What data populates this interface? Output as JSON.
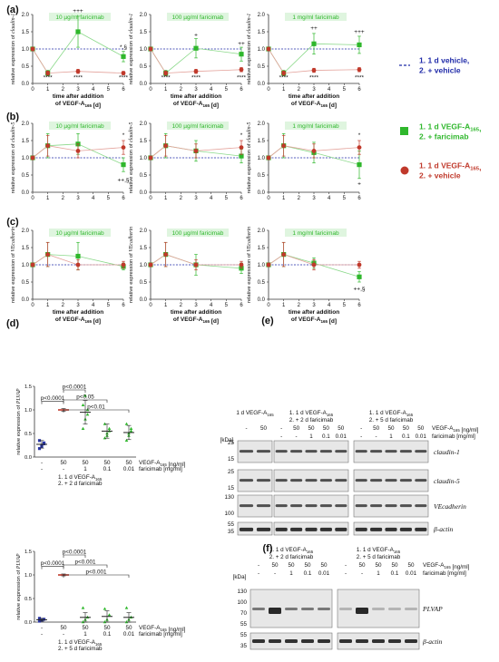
{
  "panels": {
    "a": "(a)",
    "b": "(b)",
    "c": "(c)",
    "d": "(d)",
    "e": "(e)",
    "f": "(f)"
  },
  "legend": [
    {
      "lines": [
        "1. 1 d vehicle,",
        "2. + vehicle"
      ],
      "color": "#1f2aa8",
      "marker": "dash"
    },
    {
      "lines": [
        "1. 1 d VEGF-A165,",
        "2. + faricimab"
      ],
      "color": "#2fb72c",
      "marker": "square"
    },
    {
      "lines": [
        "1. 1 d VEGF-A165,",
        "2. + vehicle"
      ],
      "color": "#c0392b",
      "marker": "circle"
    }
  ],
  "chart_data": [
    {
      "type": "line",
      "panel": "a",
      "title": "10 µg/ml faricimab",
      "ylabel": "relative expression of claudin-1",
      "xlabel": "time after addition of VEGF-A165 [d]",
      "x": [
        0,
        1,
        3,
        6
      ],
      "xticks": [
        0,
        1,
        2,
        3,
        4,
        5,
        6
      ],
      "ylim": [
        0,
        2.0
      ],
      "yticks": [
        "0.0",
        "0.5",
        "1.0",
        "1.5",
        "2.0"
      ],
      "series": [
        {
          "name": "VEGF-A165 + faricimab",
          "color": "#2fb72c",
          "values": [
            1.0,
            0.3,
            1.5,
            0.78
          ],
          "err": [
            0.05,
            0.08,
            0.45,
            0.15
          ]
        },
        {
          "name": "VEGF-A165 + vehicle",
          "color": "#c0392b",
          "values": [
            1.0,
            0.3,
            0.35,
            0.3
          ],
          "err": [
            0.05,
            0.06,
            0.06,
            0.05
          ]
        }
      ],
      "annotations": [
        {
          "x": 3,
          "y": 2.05,
          "text": "+++"
        },
        {
          "x": 6,
          "y": 1.0,
          "text": "*,§"
        },
        {
          "x": 1,
          "y": 0.12,
          "text": "****"
        },
        {
          "x": 3,
          "y": 0.12,
          "text": "****"
        },
        {
          "x": 6,
          "y": 0.12,
          "text": "****"
        }
      ]
    },
    {
      "type": "line",
      "panel": "a",
      "title": "100 µg/ml faricimab",
      "ylabel": "relative expression of claudin-1",
      "xlabel": "time after addition of VEGF-A165 [d]",
      "x": [
        0,
        1,
        3,
        6
      ],
      "xticks": [
        0,
        1,
        2,
        3,
        4,
        5,
        6
      ],
      "ylim": [
        0,
        2.0
      ],
      "yticks": [
        "0.0",
        "0.5",
        "1.0",
        "1.5",
        "2.0"
      ],
      "series": [
        {
          "name": "VEGF-A165 + faricimab",
          "color": "#2fb72c",
          "values": [
            1.0,
            0.3,
            1.02,
            0.85
          ],
          "err": [
            0.05,
            0.08,
            0.28,
            0.2
          ]
        },
        {
          "name": "VEGF-A165 + vehicle",
          "color": "#c0392b",
          "values": [
            1.0,
            0.3,
            0.35,
            0.4
          ],
          "err": [
            0.05,
            0.06,
            0.06,
            0.06
          ]
        }
      ],
      "annotations": [
        {
          "x": 3,
          "y": 1.35,
          "text": "+"
        },
        {
          "x": 6,
          "y": 1.1,
          "text": "++"
        },
        {
          "x": 1,
          "y": 0.12,
          "text": "****"
        },
        {
          "x": 3,
          "y": 0.12,
          "text": "****"
        },
        {
          "x": 6,
          "y": 0.12,
          "text": "****"
        }
      ]
    },
    {
      "type": "line",
      "panel": "a",
      "title": "1 mg/ml faricimab",
      "ylabel": "relative expression of claudin-1",
      "xlabel": "time after addition of VEGF-A165 [d]",
      "x": [
        0,
        1,
        3,
        6
      ],
      "xticks": [
        0,
        1,
        2,
        3,
        4,
        5,
        6
      ],
      "ylim": [
        0,
        2.0
      ],
      "yticks": [
        "0.0",
        "0.5",
        "1.0",
        "1.5",
        "2.0"
      ],
      "series": [
        {
          "name": "VEGF-A165 + faricimab",
          "color": "#2fb72c",
          "values": [
            1.0,
            0.3,
            1.15,
            1.12
          ],
          "err": [
            0.05,
            0.08,
            0.3,
            0.25
          ]
        },
        {
          "name": "VEGF-A165 + vehicle",
          "color": "#c0392b",
          "values": [
            1.0,
            0.3,
            0.38,
            0.4
          ],
          "err": [
            0.05,
            0.06,
            0.06,
            0.06
          ]
        }
      ],
      "annotations": [
        {
          "x": 3,
          "y": 1.55,
          "text": "++"
        },
        {
          "x": 6,
          "y": 1.45,
          "text": "+++"
        },
        {
          "x": 1,
          "y": 0.12,
          "text": "****"
        },
        {
          "x": 3,
          "y": 0.12,
          "text": "****"
        },
        {
          "x": 6,
          "y": 0.12,
          "text": "****"
        }
      ]
    },
    {
      "type": "line",
      "panel": "b",
      "title": "10 µg/ml faricimab",
      "ylabel": "relative expression of claudin-5",
      "xlabel": "",
      "x": [
        0,
        1,
        3,
        6
      ],
      "xticks": [
        0,
        1,
        2,
        3,
        4,
        5,
        6
      ],
      "ylim": [
        0,
        2.0
      ],
      "yticks": [
        "0.0",
        "0.5",
        "1.0",
        "1.5",
        "2.0"
      ],
      "series": [
        {
          "name": "VEGF-A165 + faricimab",
          "color": "#2fb72c",
          "values": [
            1.0,
            1.35,
            1.4,
            0.8
          ],
          "err": [
            0.05,
            0.35,
            0.3,
            0.2
          ]
        },
        {
          "name": "VEGF-A165 + vehicle",
          "color": "#c0392b",
          "values": [
            1.0,
            1.35,
            1.2,
            1.3
          ],
          "err": [
            0.05,
            0.3,
            0.2,
            0.2
          ]
        }
      ],
      "annotations": [
        {
          "x": 6,
          "y": 1.6,
          "text": "*"
        },
        {
          "x": 6,
          "y": 0.3,
          "text": "++,§"
        }
      ]
    },
    {
      "type": "line",
      "panel": "b",
      "title": "100 µg/ml faricimab",
      "ylabel": "relative expression of claudin-5",
      "xlabel": "",
      "x": [
        0,
        1,
        3,
        6
      ],
      "xticks": [
        0,
        1,
        2,
        3,
        4,
        5,
        6
      ],
      "ylim": [
        0,
        2.0
      ],
      "yticks": [
        "0.0",
        "0.5",
        "1.0",
        "1.5",
        "2.0"
      ],
      "series": [
        {
          "name": "VEGF-A165 + faricimab",
          "color": "#2fb72c",
          "values": [
            1.0,
            1.35,
            1.2,
            1.05
          ],
          "err": [
            0.05,
            0.35,
            0.3,
            0.2
          ]
        },
        {
          "name": "VEGF-A165 + vehicle",
          "color": "#c0392b",
          "values": [
            1.0,
            1.35,
            1.2,
            1.3
          ],
          "err": [
            0.05,
            0.3,
            0.2,
            0.2
          ]
        }
      ],
      "annotations": [
        {
          "x": 6,
          "y": 1.6,
          "text": "*"
        }
      ]
    },
    {
      "type": "line",
      "panel": "b",
      "title": "1 mg/ml faricimab",
      "ylabel": "relative expression of claudin-5",
      "xlabel": "",
      "x": [
        0,
        1,
        3,
        6
      ],
      "xticks": [
        0,
        1,
        2,
        3,
        4,
        5,
        6
      ],
      "ylim": [
        0,
        2.0
      ],
      "yticks": [
        "0.0",
        "0.5",
        "1.0",
        "1.5",
        "2.0"
      ],
      "series": [
        {
          "name": "VEGF-A165 + faricimab",
          "color": "#2fb72c",
          "values": [
            1.0,
            1.35,
            1.15,
            0.8
          ],
          "err": [
            0.05,
            0.35,
            0.3,
            0.4
          ]
        },
        {
          "name": "VEGF-A165 + vehicle",
          "color": "#c0392b",
          "values": [
            1.0,
            1.35,
            1.2,
            1.3
          ],
          "err": [
            0.05,
            0.3,
            0.2,
            0.2
          ]
        }
      ],
      "annotations": [
        {
          "x": 6,
          "y": 1.6,
          "text": "*"
        },
        {
          "x": 6,
          "y": 0.2,
          "text": "+"
        }
      ]
    },
    {
      "type": "line",
      "panel": "c",
      "title": "10 µg/ml faricimab",
      "ylabel": "relative expression of VEcadherin",
      "xlabel": "time after addition of VEGF-A165 [d]",
      "x": [
        0,
        1,
        3,
        6
      ],
      "xticks": [
        0,
        1,
        2,
        3,
        4,
        5,
        6
      ],
      "ylim": [
        0,
        2.0
      ],
      "yticks": [
        "0.0",
        "0.5",
        "1.0",
        "1.5",
        "2.0"
      ],
      "series": [
        {
          "name": "VEGF-A165 + faricimab",
          "color": "#2fb72c",
          "values": [
            1.0,
            1.3,
            1.25,
            0.95
          ],
          "err": [
            0.05,
            0.35,
            0.4,
            0.1
          ]
        },
        {
          "name": "VEGF-A165 + vehicle",
          "color": "#c0392b",
          "values": [
            1.0,
            1.3,
            1.0,
            1.0
          ],
          "err": [
            0.05,
            0.35,
            0.15,
            0.1
          ]
        }
      ],
      "annotations": []
    },
    {
      "type": "line",
      "panel": "c",
      "title": "100 µg/ml faricimab",
      "ylabel": "relative expression of VEcadherin",
      "xlabel": "time after addition of VEGF-A165 [d]",
      "x": [
        0,
        1,
        3,
        6
      ],
      "xticks": [
        0,
        1,
        2,
        3,
        4,
        5,
        6
      ],
      "ylim": [
        0,
        2.0
      ],
      "yticks": [
        "0.0",
        "0.5",
        "1.0",
        "1.5",
        "2.0"
      ],
      "series": [
        {
          "name": "VEGF-A165 + faricimab",
          "color": "#2fb72c",
          "values": [
            1.0,
            1.3,
            1.0,
            0.9
          ],
          "err": [
            0.05,
            0.35,
            0.3,
            0.15
          ]
        },
        {
          "name": "VEGF-A165 + vehicle",
          "color": "#c0392b",
          "values": [
            1.0,
            1.3,
            1.0,
            1.0
          ],
          "err": [
            0.05,
            0.35,
            0.15,
            0.1
          ]
        }
      ],
      "annotations": []
    },
    {
      "type": "line",
      "panel": "c",
      "title": "1 mg/ml faricimab",
      "ylabel": "relative expression of VEcadherin",
      "xlabel": "time after addition of VEGF-A165 [d]",
      "x": [
        0,
        1,
        3,
        6
      ],
      "xticks": [
        0,
        1,
        2,
        3,
        4,
        5,
        6
      ],
      "ylim": [
        0,
        2.0
      ],
      "yticks": [
        "0.0",
        "0.5",
        "1.0",
        "1.5",
        "2.0"
      ],
      "series": [
        {
          "name": "VEGF-A165 + faricimab",
          "color": "#2fb72c",
          "values": [
            1.0,
            1.3,
            1.05,
            0.65
          ],
          "err": [
            0.05,
            0.35,
            0.15,
            0.15
          ]
        },
        {
          "name": "VEGF-A165 + vehicle",
          "color": "#c0392b",
          "values": [
            1.0,
            1.3,
            1.0,
            1.0
          ],
          "err": [
            0.05,
            0.35,
            0.15,
            0.1
          ]
        }
      ],
      "annotations": [
        {
          "x": 6,
          "y": 0.25,
          "text": "++,§"
        }
      ]
    },
    {
      "type": "scatter",
      "panel": "d",
      "ylabel": "relative expression of PLVAP",
      "ylim": [
        0,
        1.5
      ],
      "yticks": [
        "0.0",
        "0.5",
        "1.0",
        "1.5"
      ],
      "categories": [
        "ctrl",
        "V+0",
        "V+1",
        "V+0.1",
        "V+0.01"
      ],
      "row1": [
        "-",
        "50",
        "50",
        "50",
        "50"
      ],
      "row2": [
        "-",
        "-",
        "1",
        "0.1",
        "0.01"
      ],
      "row1_label": "VEGF-A165 [ng/ml]",
      "row2_label": "faricimab [mg/ml]",
      "footer": [
        "1. 1 d VEGF-A165",
        "2. + 2 d faricimab"
      ],
      "means": [
        0.27,
        1.0,
        0.95,
        0.55,
        0.52
      ],
      "sd": [
        0.08,
        0.03,
        0.25,
        0.15,
        0.15
      ],
      "points": [
        [
          0.18,
          0.22,
          0.3,
          0.35,
          0.25,
          0.28
        ],
        [
          1.0,
          1.0,
          1.0,
          1.0,
          1.0,
          1.0
        ],
        [
          0.6,
          0.8,
          1.0,
          1.1,
          1.3,
          0.9
        ],
        [
          0.4,
          0.5,
          0.6,
          0.7,
          0.45,
          0.55
        ],
        [
          0.35,
          0.5,
          0.6,
          0.7,
          0.45,
          0.55
        ]
      ],
      "colors": [
        "#2a37a8",
        "#c0392b",
        "#2fb72c",
        "#2fb72c",
        "#2fb72c"
      ],
      "brackets": [
        {
          "from": 0,
          "to": 1,
          "text": "p<0.0001"
        },
        {
          "from": 1,
          "to": 2,
          "text": "p<0.0001"
        },
        {
          "from": 1,
          "to": 3,
          "text": "p<0.05"
        },
        {
          "from": 1,
          "to": 4,
          "text": "p<0.01"
        }
      ]
    },
    {
      "type": "scatter",
      "panel": "d",
      "ylabel": "relative expression of PLVAP",
      "ylim": [
        0,
        1.5
      ],
      "yticks": [
        "0.0",
        "0.5",
        "1.0",
        "1.5"
      ],
      "categories": [
        "ctrl",
        "V+0",
        "V+1",
        "V+0.1",
        "V+0.01"
      ],
      "row1": [
        "-",
        "50",
        "50",
        "50",
        "50"
      ],
      "row2": [
        "-",
        "-",
        "1",
        "0.1",
        "0.01"
      ],
      "row1_label": "VEGF-A165 [ng/ml]",
      "row2_label": "faricimab [mg/ml]",
      "footer": [
        "1. 1 d VEGF-A165",
        "2. + 5 d faricimab"
      ],
      "means": [
        0.05,
        1.0,
        0.1,
        0.12,
        0.1
      ],
      "sd": [
        0.03,
        0.02,
        0.1,
        0.12,
        0.1
      ],
      "points": [
        [
          0.02,
          0.04,
          0.06,
          0.08
        ],
        [
          1.0,
          1.0,
          1.0,
          1.0
        ],
        [
          0.0,
          0.05,
          0.1,
          0.3
        ],
        [
          0.0,
          0.05,
          0.15,
          0.28
        ],
        [
          0.0,
          0.05,
          0.1,
          0.3
        ]
      ],
      "colors": [
        "#2a37a8",
        "#c0392b",
        "#2fb72c",
        "#2fb72c",
        "#2fb72c"
      ],
      "brackets": [
        {
          "from": 0,
          "to": 1,
          "text": "p<0.0001"
        },
        {
          "from": 1,
          "to": 2,
          "text": "p<0.0001"
        },
        {
          "from": 1,
          "to": 3,
          "text": "p<0.001"
        },
        {
          "from": 1,
          "to": 4,
          "text": "p<0.001"
        }
      ]
    }
  ],
  "blot_e": {
    "group_titles": [
      "1 d VEGF-A165",
      "1. 1 d VEGF-A165\n2. + 2 d faricimab",
      "1. 1 d VEGF-A165\n2. + 5 d faricimab"
    ],
    "row1": [
      "-",
      "50",
      "-",
      "50",
      "50",
      "50",
      "50",
      "-",
      "50",
      "50",
      "50",
      "50"
    ],
    "row2": [
      "",
      "",
      "-",
      "-",
      "1",
      "0.1",
      "0.01",
      "-",
      "-",
      "1",
      "0.1",
      "0.01"
    ],
    "row1_label": "VEGF-A165 [ng/ml]",
    "row2_label": "faricimab [mg/ml]",
    "kda_header": "[kDa]",
    "blots": [
      {
        "label": "claudin-1",
        "kda": [
          "25",
          "15"
        ],
        "italic": true
      },
      {
        "label": "claudin-5",
        "kda": [
          "25",
          "15"
        ],
        "italic": true
      },
      {
        "label": "VEcadherin",
        "kda": [
          "130",
          "100"
        ],
        "italic": true
      },
      {
        "label": "β-actin",
        "kda": [
          "55",
          "35"
        ],
        "italic": true
      }
    ]
  },
  "blot_f": {
    "group_titles": [
      "1. 1 d VEGF-A165\n2. + 2 d faricimab",
      "1. 1 d VEGF-A165\n2. + 5 d faricimab"
    ],
    "row1": [
      "-",
      "50",
      "50",
      "50",
      "50",
      "-",
      "50",
      "50",
      "50",
      "50"
    ],
    "row2": [
      "-",
      "-",
      "1",
      "0.1",
      "0.01",
      "-",
      "-",
      "1",
      "0.1",
      "0.01"
    ],
    "row1_label": "VEGF-A165 [ng/ml]",
    "row2_label": "faricimab [mg/ml]",
    "kda_header": "[kDa]",
    "blots": [
      {
        "label": "PLVAP",
        "kda": [
          "130",
          "100",
          "70",
          "55"
        ],
        "italic": true
      },
      {
        "label": "β-actin",
        "kda": [
          "55",
          "35"
        ],
        "italic": true
      }
    ]
  }
}
